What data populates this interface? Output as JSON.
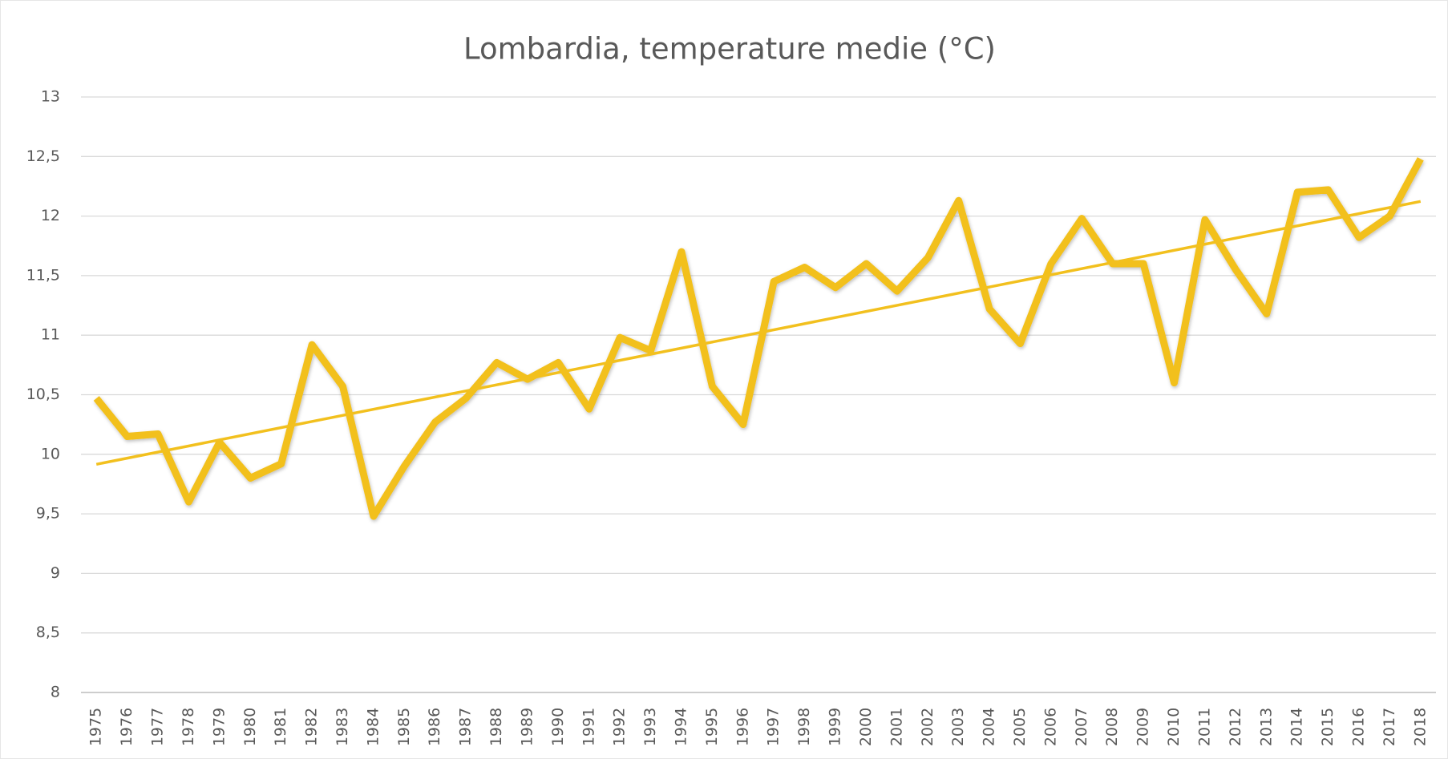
{
  "chart_data": {
    "type": "line",
    "title": "Lombardia, temperature medie (°C)",
    "categories": [
      "1975",
      "1976",
      "1977",
      "1978",
      "1979",
      "1980",
      "1981",
      "1982",
      "1983",
      "1984",
      "1985",
      "1986",
      "1987",
      "1988",
      "1989",
      "1990",
      "1991",
      "1992",
      "1993",
      "1994",
      "1995",
      "1996",
      "1997",
      "1998",
      "1999",
      "2000",
      "2001",
      "2002",
      "2003",
      "2004",
      "2005",
      "2006",
      "2007",
      "2008",
      "2009",
      "2010",
      "2011",
      "2012",
      "2013",
      "2014",
      "2015",
      "2016",
      "2017",
      "2018"
    ],
    "values": [
      10.47,
      10.15,
      10.17,
      9.6,
      10.1,
      9.8,
      9.92,
      10.92,
      10.57,
      9.48,
      9.9,
      10.27,
      10.47,
      10.77,
      10.63,
      10.77,
      10.38,
      10.98,
      10.87,
      11.7,
      10.57,
      10.25,
      11.45,
      11.57,
      11.4,
      11.6,
      11.37,
      11.65,
      12.13,
      11.22,
      10.93,
      11.6,
      11.98,
      11.6,
      11.6,
      10.6,
      11.97,
      11.55,
      11.18,
      12.2,
      12.22,
      11.82,
      12.0,
      12.48
    ],
    "color": "#f2c01e",
    "trendline": true,
    "ylim": [
      8,
      13
    ],
    "yticks": [
      8,
      {
        "value": 8.5,
        "label": "8,5"
      },
      9,
      {
        "value": 9.5,
        "label": "9,5"
      },
      10,
      {
        "value": 10.5,
        "label": "10,5"
      },
      11,
      {
        "value": 11.5,
        "label": "11,5"
      },
      12,
      {
        "value": 12.5,
        "label": "12,5"
      },
      13
    ],
    "grid": true
  }
}
